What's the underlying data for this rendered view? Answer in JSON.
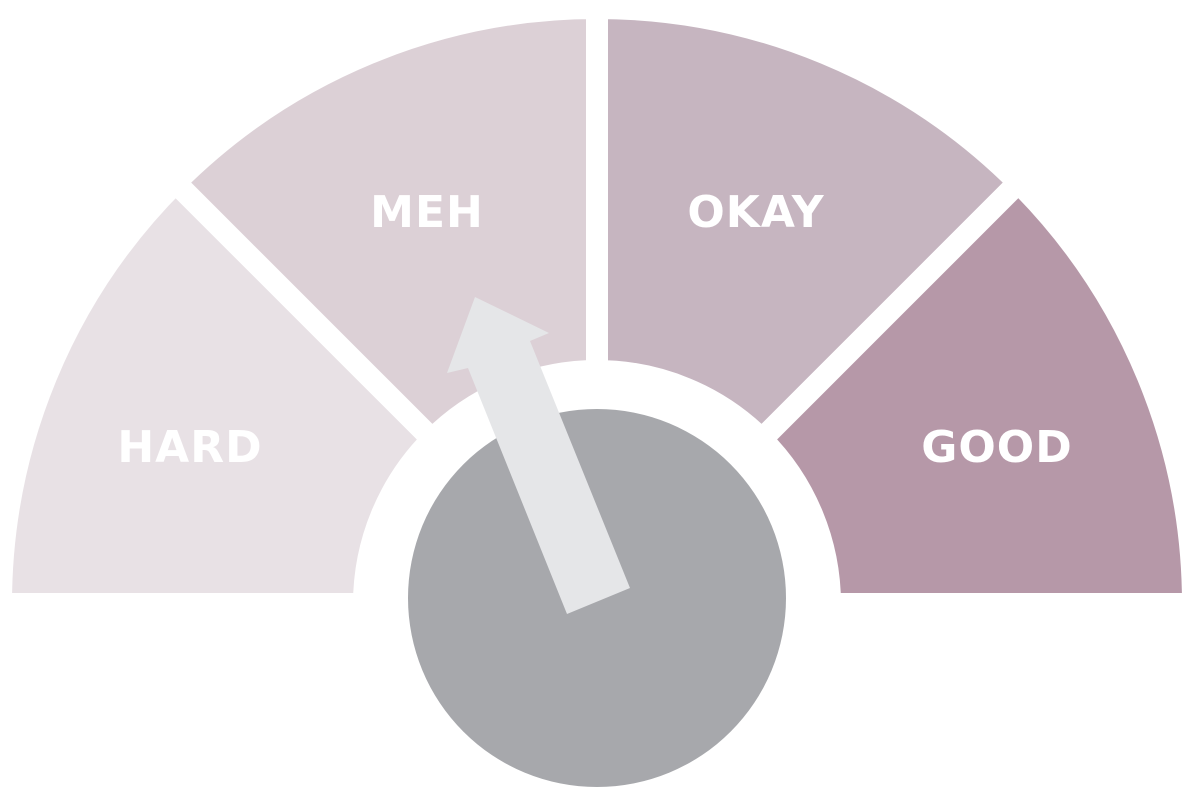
{
  "gauge": {
    "segments": [
      {
        "label": "HARD",
        "color": "#e8e1e5"
      },
      {
        "label": "MEH",
        "color": "#dcd0d6"
      },
      {
        "label": "OKAY",
        "color": "#c6b5c0"
      },
      {
        "label": "GOOD",
        "color": "#b698a8"
      }
    ],
    "needle_segment": "MEH",
    "needle_color": "#e5e6e8",
    "hub_color": "#a7a8ac",
    "background": "#ffffff"
  }
}
